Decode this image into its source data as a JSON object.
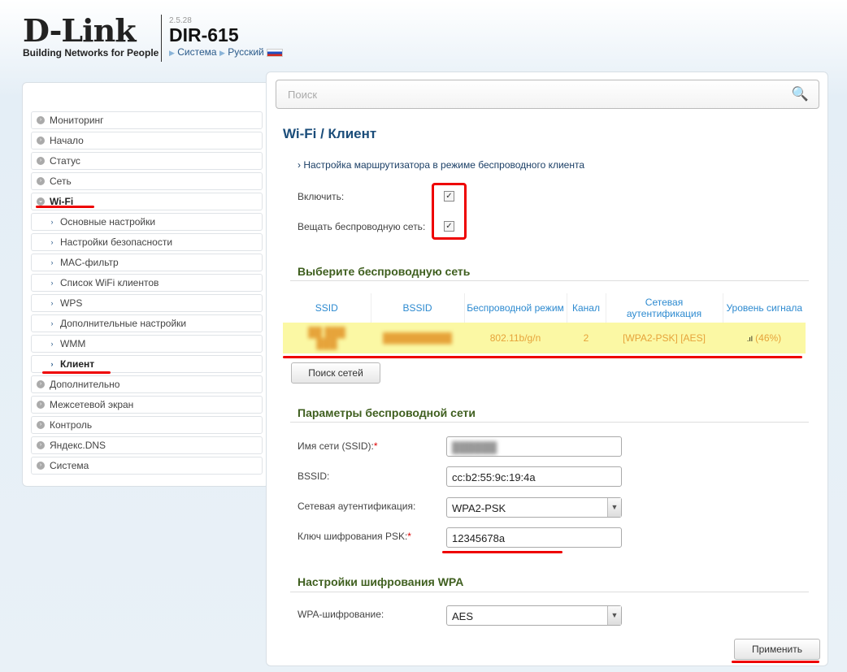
{
  "header": {
    "logo": "D-Link",
    "tagline": "Building Networks for People",
    "version": "2.5.28",
    "model": "DIR-615",
    "crumb_system": "Система",
    "crumb_language": "Русский"
  },
  "sidebar": {
    "items": [
      {
        "label": "Мониторинг",
        "type": "top"
      },
      {
        "label": "Начало",
        "type": "top"
      },
      {
        "label": "Статус",
        "type": "top"
      },
      {
        "label": "Сеть",
        "type": "top"
      },
      {
        "label": "Wi-Fi",
        "type": "top",
        "expanded": true
      },
      {
        "label": "Основные настройки",
        "type": "sub"
      },
      {
        "label": "Настройки безопасности",
        "type": "sub"
      },
      {
        "label": "MAC-фильтр",
        "type": "sub"
      },
      {
        "label": "Список WiFi клиентов",
        "type": "sub"
      },
      {
        "label": "WPS",
        "type": "sub"
      },
      {
        "label": "Дополнительные настройки",
        "type": "sub"
      },
      {
        "label": "WMM",
        "type": "sub"
      },
      {
        "label": "Клиент",
        "type": "sub",
        "active": true
      },
      {
        "label": "Дополнительно",
        "type": "top"
      },
      {
        "label": "Межсетевой экран",
        "type": "top"
      },
      {
        "label": "Контроль",
        "type": "top"
      },
      {
        "label": "Яндекс.DNS",
        "type": "top"
      },
      {
        "label": "Система",
        "type": "top"
      }
    ]
  },
  "search": {
    "placeholder": "Поиск"
  },
  "page": {
    "title": "Wi-Fi /  Клиент",
    "description": "Настройка маршрутизатора в режиме беспроводного клиента",
    "enable_label": "Включить:",
    "enable_checked": true,
    "broadcast_label": "Вещать беспроводную сеть:",
    "broadcast_checked": true
  },
  "networks": {
    "title": "Выберите беспроводную сеть",
    "columns": [
      "SSID",
      "BSSID",
      "Беспроводной режим",
      "Канал",
      "Сетевая аутентификация",
      "Уровень сигнала"
    ],
    "rows": [
      {
        "mode": "802.11b/g/n",
        "channel": "2",
        "auth": "[WPA2-PSK] [AES]",
        "signal": "(46%)"
      }
    ],
    "scan_button": "Поиск сетей"
  },
  "params": {
    "title": "Параметры беспроводной сети",
    "ssid_label": "Имя сети (SSID):",
    "bssid_label": "BSSID:",
    "bssid_value": "cc:b2:55:9c:19:4a",
    "auth_label": "Сетевая аутентификация:",
    "auth_value": "WPA2-PSK",
    "psk_label": "Ключ шифрования PSK:",
    "psk_value": "12345678a"
  },
  "wpa": {
    "title": "Настройки шифрования WPA",
    "enc_label": "WPA-шифрование:",
    "enc_value": "AES"
  },
  "apply_button": "Применить",
  "colors": {
    "accent": "#1b4d7a",
    "section": "#3f5f1f",
    "highlight_row": "#fbf8a4",
    "annotation": "#e00000"
  }
}
